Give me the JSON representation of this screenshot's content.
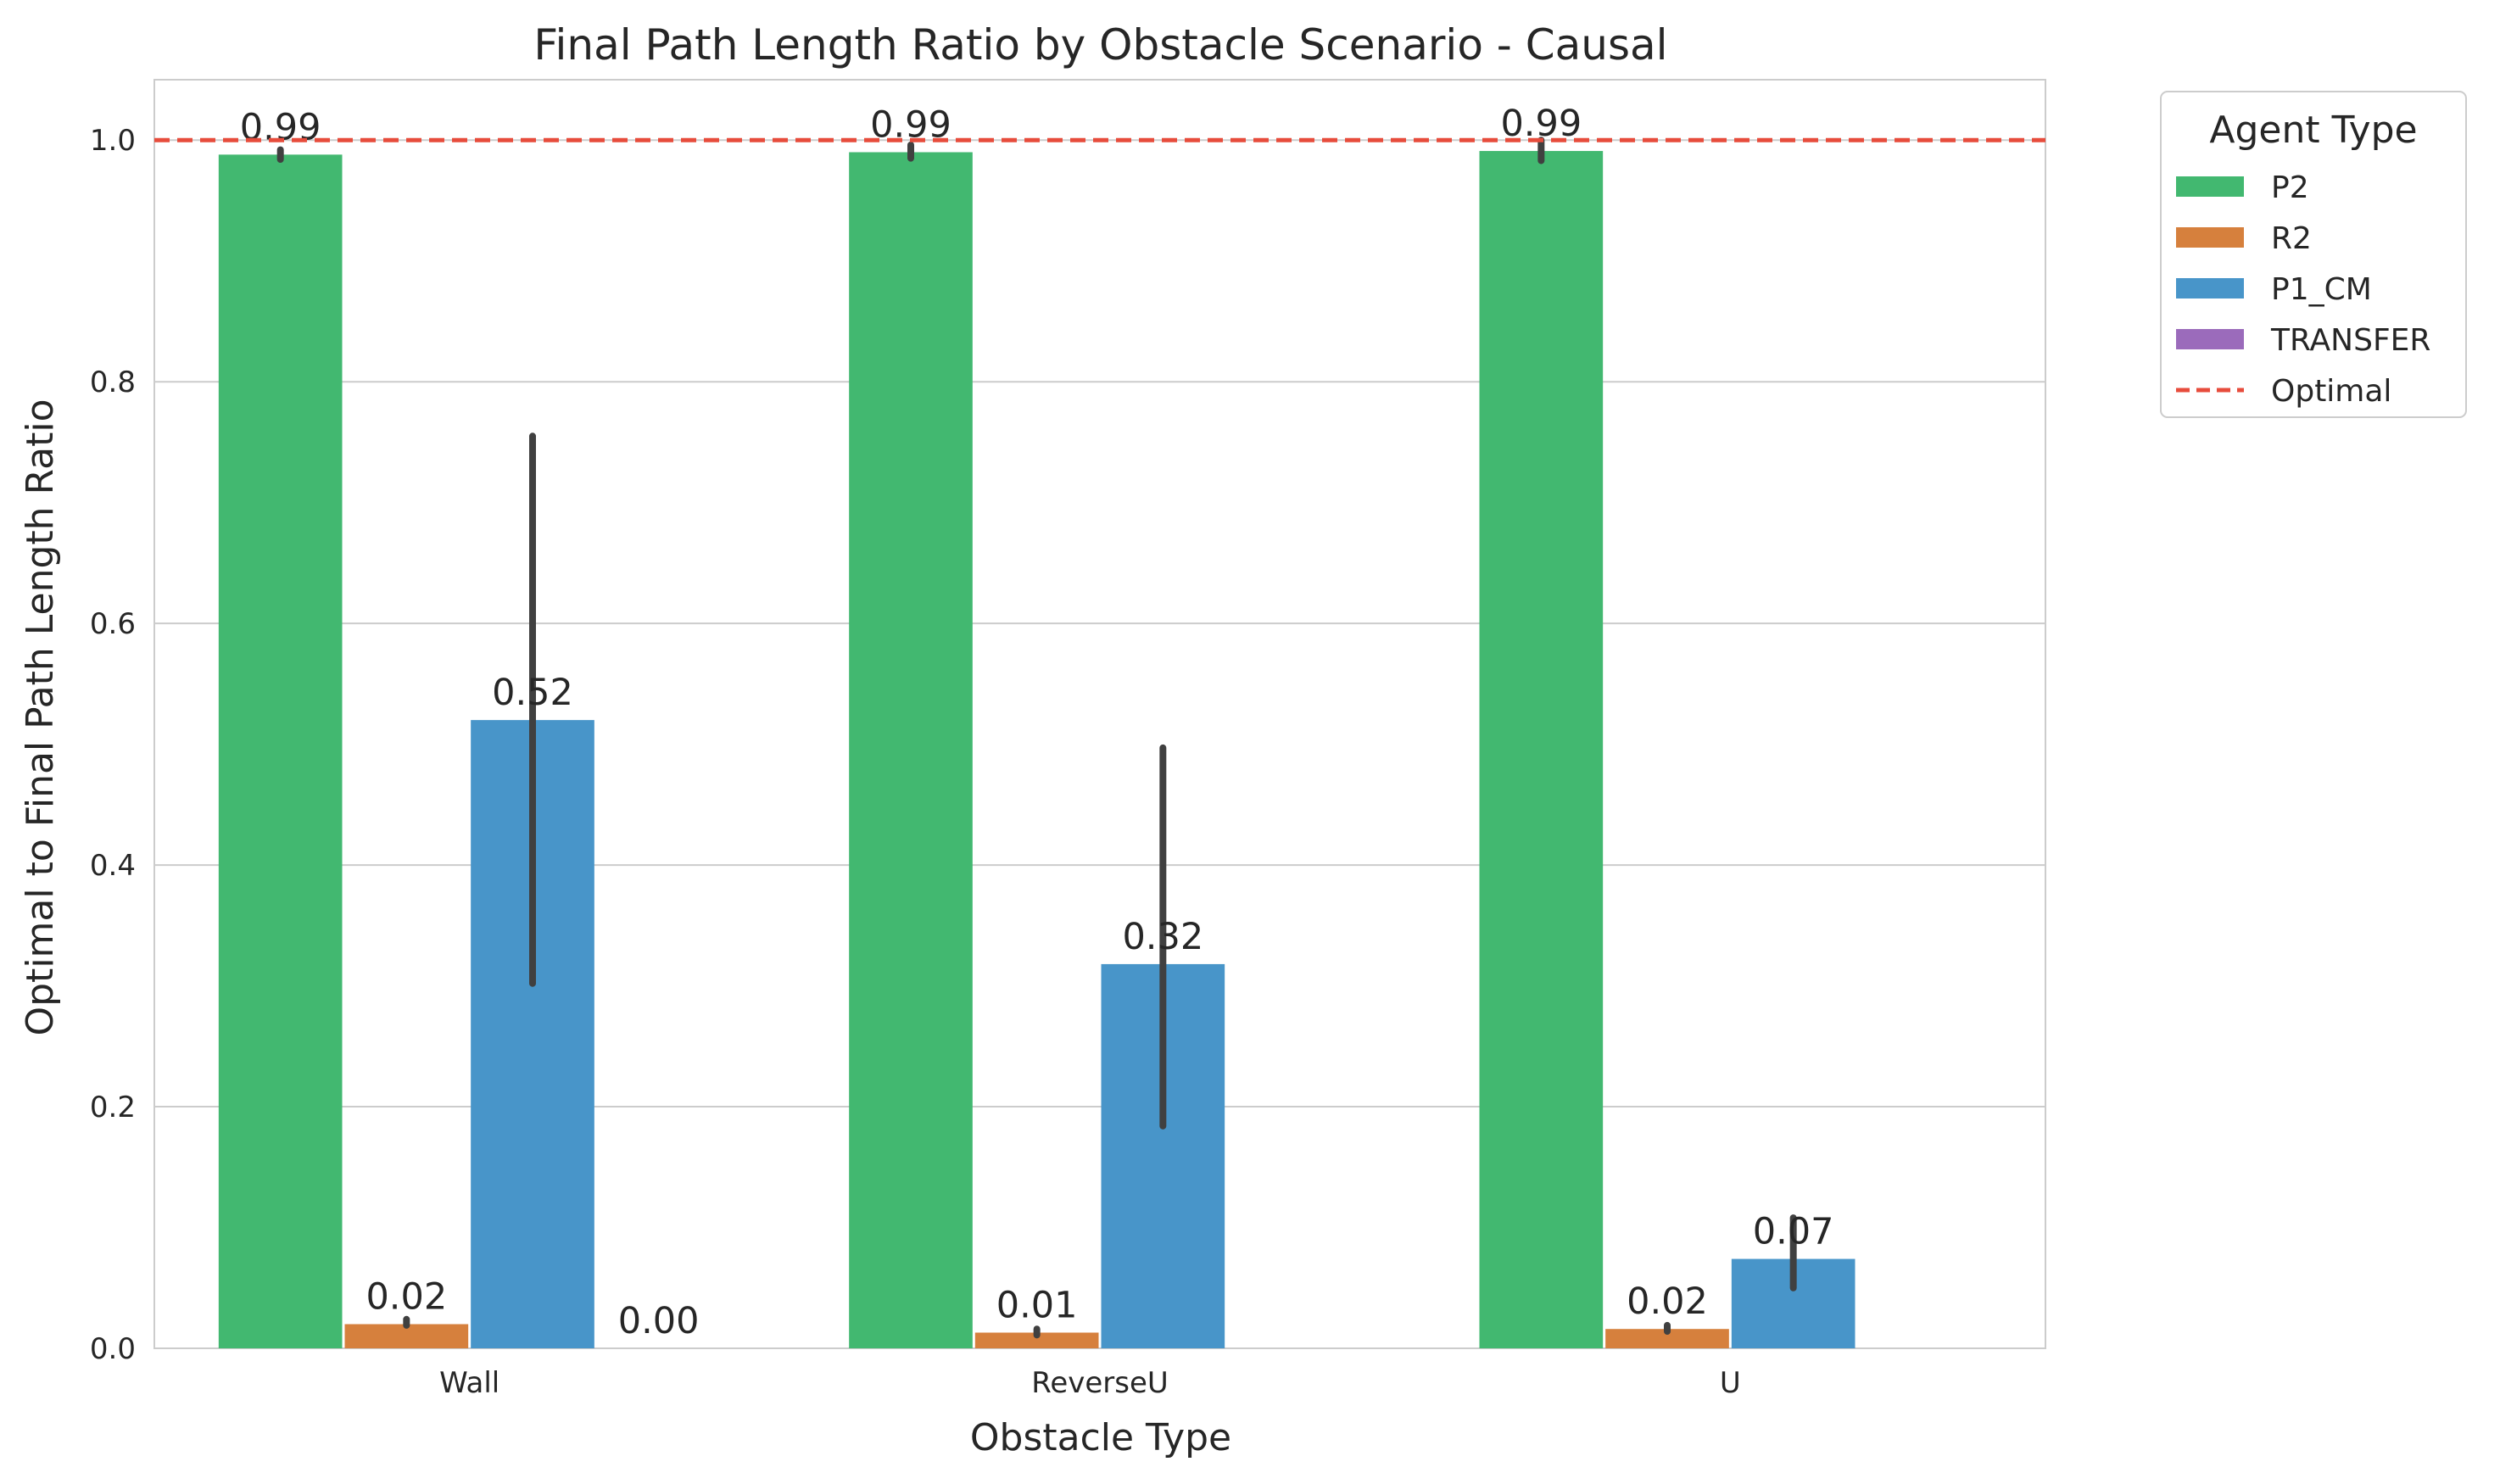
{
  "chart_data": {
    "type": "bar",
    "title": "Final Path Length Ratio by Obstacle Scenario - Causal",
    "xlabel": "Obstacle Type",
    "ylabel": "Optimal to Final Path Length Ratio",
    "categories": [
      "Wall",
      "ReverseU",
      "U"
    ],
    "ylim": [
      0,
      1.05
    ],
    "yticks": [
      0.0,
      0.2,
      0.4,
      0.6,
      0.8,
      1.0
    ],
    "ytick_labels": [
      "0.0",
      "0.2",
      "0.4",
      "0.6",
      "0.8",
      "1.0"
    ],
    "grid": "horizontal",
    "series": [
      {
        "name": "P2",
        "color": "#42b870",
        "values": [
          0.988,
          0.99,
          0.991
        ],
        "error_low": [
          0.984,
          0.985,
          0.983
        ],
        "error_high": [
          0.992,
          0.996,
          1.0
        ],
        "labels": [
          "0.99",
          "0.99",
          "0.99"
        ]
      },
      {
        "name": "R2",
        "color": "#d6803d",
        "values": [
          0.02,
          0.013,
          0.016
        ],
        "error_low": [
          0.019,
          0.011,
          0.014
        ],
        "error_high": [
          0.024,
          0.016,
          0.019
        ],
        "labels": [
          "0.02",
          "0.01",
          "0.02"
        ]
      },
      {
        "name": "P1_CM",
        "color": "#4895c9",
        "values": [
          0.52,
          0.318,
          0.074
        ],
        "error_low": [
          0.302,
          0.184,
          0.05
        ],
        "error_high": [
          0.755,
          0.497,
          0.108
        ],
        "labels": [
          "0.52",
          "0.32",
          "0.07"
        ]
      },
      {
        "name": "TRANSFER",
        "color": "#9b6bbb",
        "values": [
          0.0,
          null,
          null
        ],
        "labels": [
          "0.00",
          null,
          null
        ]
      }
    ],
    "reference_line": {
      "name": "Optimal",
      "value": 1.0,
      "color": "#e74c3c",
      "style": "dashed"
    },
    "legend": {
      "title": "Agent Type",
      "position": "outside-top-right",
      "entries": [
        "P2",
        "R2",
        "P1_CM",
        "TRANSFER",
        "Optimal"
      ]
    }
  }
}
